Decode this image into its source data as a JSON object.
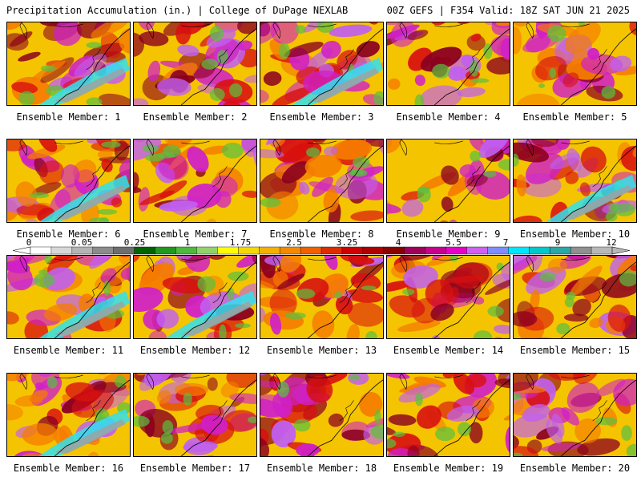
{
  "header": {
    "left": "Precipitation Accumulation (in.) | College of DuPage NEXLAB",
    "right": "00Z GEFS | F354 Valid: 18Z SAT JUN 21 2025"
  },
  "panels": [
    {
      "label": "Ensemble Member: 1"
    },
    {
      "label": "Ensemble Member: 2"
    },
    {
      "label": "Ensemble Member: 3"
    },
    {
      "label": "Ensemble Member: 4"
    },
    {
      "label": "Ensemble Member: 5"
    },
    {
      "label": "Ensemble Member: 6"
    },
    {
      "label": "Ensemble Member: 7"
    },
    {
      "label": "Ensemble Member: 8"
    },
    {
      "label": "Ensemble Member: 9"
    },
    {
      "label": "Ensemble Member: 10"
    },
    {
      "label": "Ensemble Member: 11"
    },
    {
      "label": "Ensemble Member: 12"
    },
    {
      "label": "Ensemble Member: 13"
    },
    {
      "label": "Ensemble Member: 14"
    },
    {
      "label": "Ensemble Member: 15"
    },
    {
      "label": "Ensemble Member: 16"
    },
    {
      "label": "Ensemble Member: 17"
    },
    {
      "label": "Ensemble Member: 18"
    },
    {
      "label": "Ensemble Member: 19"
    },
    {
      "label": "Ensemble Member: 20"
    }
  ],
  "colorbar": {
    "labels": [
      "0",
      "0.05",
      "0.25",
      "1",
      "1.75",
      "2.5",
      "3.25",
      "4",
      "5.5",
      "7",
      "9",
      "12"
    ],
    "colors": [
      "#ffffff",
      "#d8d8d8",
      "#b4b4b4",
      "#8c8c8c",
      "#6e6e6e",
      "#006400",
      "#1f9a1f",
      "#4cba3a",
      "#8fd46a",
      "#ffff00",
      "#f5d800",
      "#f5b000",
      "#f58a00",
      "#f26000",
      "#e02a00",
      "#d00000",
      "#b00000",
      "#8b0000",
      "#a0005a",
      "#c8008c",
      "#e600c8",
      "#d060f0",
      "#7f8cff",
      "#00e5ff",
      "#00c8c8",
      "#2aa8a8",
      "#909090",
      "#b8b8b8"
    ]
  },
  "palette": {
    "yellow": "#f5c400",
    "orange": "#f57c00",
    "red": "#d81010",
    "darkred": "#8b0020",
    "magenta": "#d020c8",
    "violet": "#c060f0",
    "cyan": "#30e0f0",
    "green": "#58c040",
    "gray": "#a0a0a0"
  }
}
